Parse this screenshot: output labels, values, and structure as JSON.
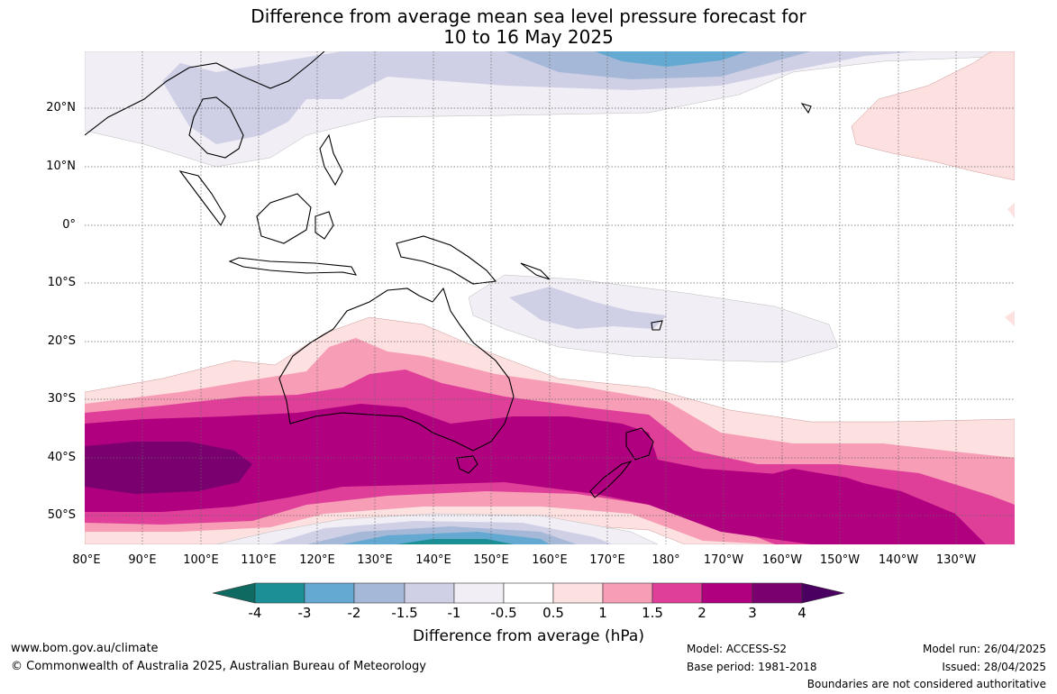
{
  "title_line1": "Difference from average mean sea level pressure forecast for",
  "title_line2": "10 to 16 May 2025",
  "lat_labels": [
    "20°N",
    "10°N",
    "0°",
    "10°S",
    "20°S",
    "30°S",
    "40°S",
    "50°S"
  ],
  "lon_labels": [
    "80°E",
    "90°E",
    "100°E",
    "110°E",
    "120°E",
    "130°E",
    "140°E",
    "150°E",
    "160°E",
    "170°E",
    "180°",
    "170°W",
    "160°W",
    "150°W",
    "140°W",
    "130°W"
  ],
  "colorbar": {
    "labels": [
      "-4",
      "-3",
      "-2",
      "-1.5",
      "-1",
      "-0.5",
      "0.5",
      "1",
      "1.5",
      "2",
      "3",
      "4"
    ],
    "colors": [
      "#0f6b61",
      "#1a9096",
      "#63a9d2",
      "#a6b8d8",
      "#cfd0e6",
      "#f2eef5",
      "#ffffff",
      "#fde0e0",
      "#f79db6",
      "#df3f99",
      "#b1007f",
      "#7a006f",
      "#4a0060"
    ],
    "title": "Difference from average (hPa)"
  },
  "footer": {
    "website": "www.bom.gov.au/climate",
    "copyright": "© Commonwealth of Australia 2025, Australian Bureau of Meteorology",
    "model": "Model: ACCESS-S2",
    "base_period": "Base period: 1981-2018",
    "model_run": "Model run: 26/04/2025",
    "issued": "Issued: 28/04/2025",
    "disclaimer": "Boundaries are not considered authoritative"
  }
}
